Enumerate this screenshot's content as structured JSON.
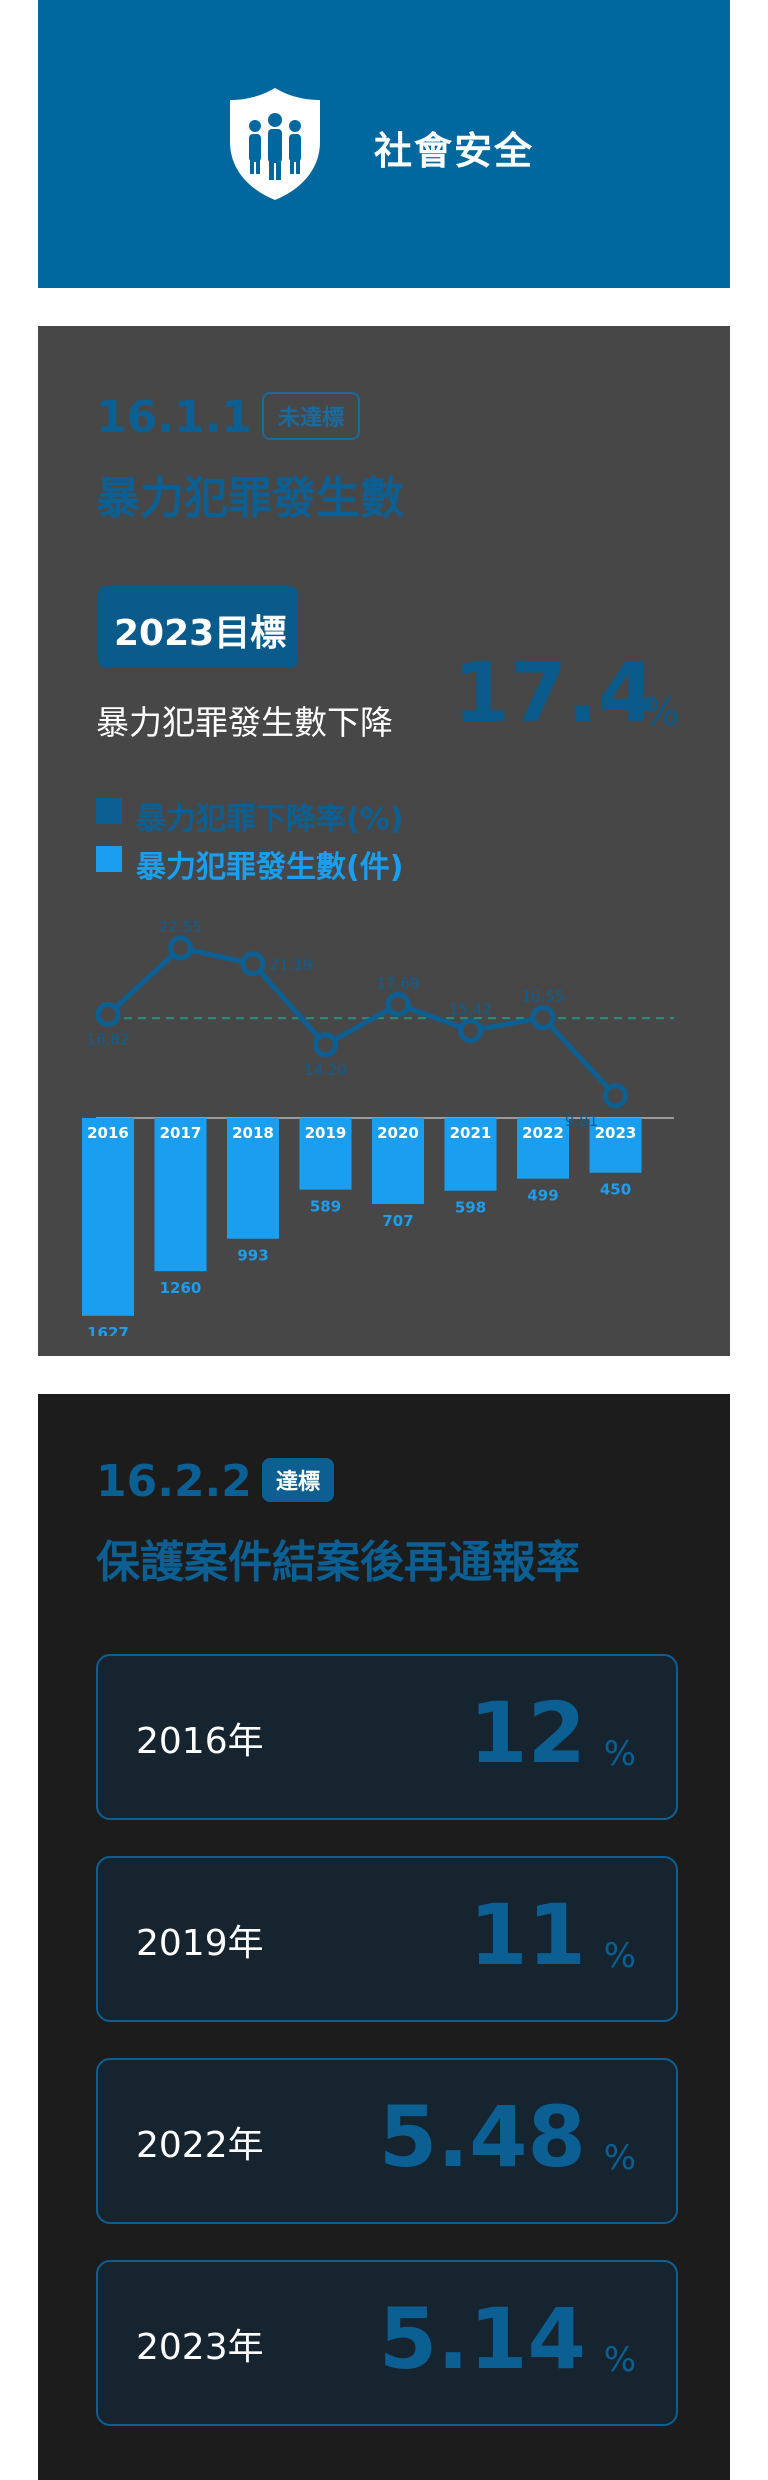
{
  "header": {
    "title": "社會安全",
    "icon": "family-shield-icon"
  },
  "card1": {
    "code": "16.1.1",
    "status": "未達標",
    "title": "暴力犯罪發生數",
    "goal_label": "2023目標",
    "goal_desc": "暴力犯罪發生數下降",
    "goal_value": "17.4",
    "goal_unit": "%",
    "legend": [
      {
        "label": "暴力犯罪下降率(%)",
        "color": "#0b5f93"
      },
      {
        "label": "暴力犯罪發生數(件)",
        "color": "#1a9ff0"
      }
    ]
  },
  "chart_data": {
    "type": "bar",
    "categories": [
      "2016",
      "2017",
      "2018",
      "2019",
      "2020",
      "2021",
      "2022",
      "2023"
    ],
    "series": [
      {
        "name": "暴力犯罪下降率(%)",
        "type": "line",
        "values": [
          16.82,
          22.55,
          21.19,
          14.2,
          17.69,
          15.42,
          16.55,
          9.81
        ],
        "color": "#0b5f93"
      },
      {
        "name": "暴力犯罪發生數(件)",
        "type": "bar",
        "values": [
          1627,
          1260,
          993,
          589,
          707,
          598,
          499,
          450
        ],
        "color": "#1a9ff0"
      }
    ],
    "reference_line": 16.5,
    "legend": "top-left"
  },
  "card2": {
    "code": "16.2.2",
    "status": "達標",
    "title": "保護案件結案後再通報率",
    "stats": [
      {
        "year": "2016年",
        "value": "12",
        "unit": "%"
      },
      {
        "year": "2019年",
        "value": "11",
        "unit": "%"
      },
      {
        "year": "2022年",
        "value": "5.48",
        "unit": "%"
      },
      {
        "year": "2023年",
        "value": "5.14",
        "unit": "%"
      }
    ]
  }
}
